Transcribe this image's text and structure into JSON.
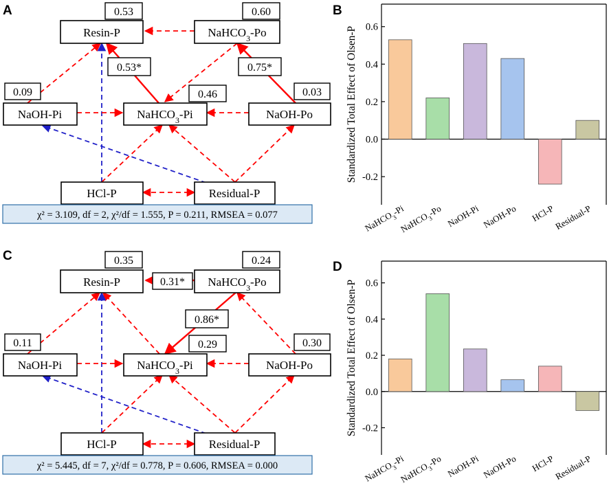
{
  "colors": {
    "red": "#ff0000",
    "blue": "#2020c8",
    "fit_box_fill": "#dce9f5",
    "fit_box_border": "#2f6fa8",
    "bar_colors": [
      "#f9c99b",
      "#a8dea8",
      "#c9b8dc",
      "#a6c4ee",
      "#f6b6b8",
      "#c9c7a2"
    ]
  },
  "panels": {
    "A": {
      "letter": "A",
      "nodes": {
        "resin": {
          "label": "Resin-P"
        },
        "nahco3po": {
          "label": "NaHCO3-Po"
        },
        "naohpi": {
          "label": "NaOH-Pi"
        },
        "nahco3pi": {
          "label": "NaHCO3-Pi"
        },
        "naohpo": {
          "label": "NaOH-Po"
        },
        "hcl": {
          "label": "HCl-P"
        },
        "residual": {
          "label": "Residual-P"
        }
      },
      "r2": {
        "resin": "0.53",
        "nahco3po": "0.60",
        "naohpi": "0.09",
        "nahco3pi": "0.46",
        "naohpo": "0.03"
      },
      "path_coefs": [
        "0.53*",
        "0.75*"
      ],
      "fit": "χ² = 3.109, df = 2, χ²/df = 1.555,  P = 0.211, RMSEA = 0.077"
    },
    "C": {
      "letter": "C",
      "nodes": {
        "resin": {
          "label": "Resin-P"
        },
        "nahco3po": {
          "label": "NaHCO3-Po"
        },
        "naohpi": {
          "label": "NaOH-Pi"
        },
        "nahco3pi": {
          "label": "NaHCO3-Pi"
        },
        "naohpo": {
          "label": "NaOH-Po"
        },
        "hcl": {
          "label": "HCl-P"
        },
        "residual": {
          "label": "Residual-P"
        }
      },
      "r2": {
        "resin": "0.35",
        "nahco3po": "0.24",
        "naohpi": "0.11",
        "nahco3pi": "0.29",
        "naohpo": "0.30"
      },
      "path_coefs": [
        "0.31*",
        "0.86*"
      ],
      "fit": "χ² = 5.445, df = 7, χ²/df = 0.778,  P = 0.606, RMSEA = 0.000"
    }
  },
  "chart_data": [
    {
      "panel": "B",
      "type": "bar",
      "categories": [
        "NaHCO3-Pi",
        "NaHCO3-Po",
        "NaOH-Pi",
        "NaOH-Po",
        "HCl-P",
        "Residual-P"
      ],
      "values": [
        0.53,
        0.22,
        0.51,
        0.43,
        -0.24,
        0.1
      ],
      "ylabel": "Standardized Total Effect of Olsen-P",
      "ylim": [
        -0.35,
        0.72
      ],
      "yticks": [
        "-0.2",
        "0.0",
        "0.2",
        "0.4",
        "0.6"
      ]
    },
    {
      "panel": "D",
      "type": "bar",
      "categories": [
        "NaHCO3-Pi",
        "NaHCO3-Po",
        "NaOH-Pi",
        "NaOH-Po",
        "HCl-P",
        "Residual-P"
      ],
      "values": [
        0.18,
        0.54,
        0.235,
        0.065,
        0.14,
        -0.105
      ],
      "ylabel": "Standardized Total Effect of Olsen-P",
      "ylim": [
        -0.35,
        0.72
      ],
      "yticks": [
        "-0.2",
        "0.0",
        "0.2",
        "0.4",
        "0.6"
      ]
    }
  ]
}
